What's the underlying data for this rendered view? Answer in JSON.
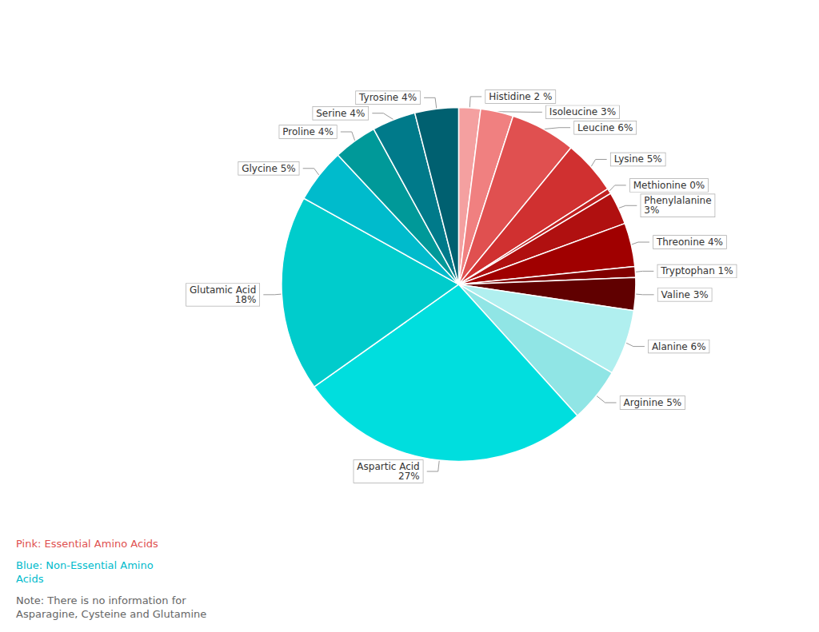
{
  "chart_data": {
    "type": "pie",
    "categories": [
      "Histidine 2 %",
      "Isoleucine 3%",
      "Leucine 6%",
      "Lysine 5%",
      "Methionine 0%",
      "Phenylalanine\n3%",
      "Threonine 4%",
      "Tryptophan 1%",
      "Valine 3%",
      "Alanine 6%",
      "Arginine 5%",
      "Aspartic Acid\n27%",
      "Glutamic Acid\n18%",
      "Glycine 5%",
      "Proline 4%",
      "Serine 4%",
      "Tyrosine 4%"
    ],
    "values": [
      2,
      3,
      6,
      5,
      0.5,
      3,
      4,
      1,
      3,
      6,
      5,
      27,
      18,
      5,
      4,
      4,
      4
    ],
    "colors": [
      "#F4A0A0",
      "#F08080",
      "#E05050",
      "#D03030",
      "#C02020",
      "#B01010",
      "#A00000",
      "#800000",
      "#600000",
      "#B0EFEF",
      "#90E5E5",
      "#00DEDE",
      "#00CCCC",
      "#00BBCC",
      "#009999",
      "#007A8A",
      "#006070"
    ],
    "annotations": [
      {
        "text": "Pink: Essential Amino Acids",
        "color": "#E05050"
      },
      {
        "text": "Blue: Non-Essential Amino\nAcids",
        "color": "#00BBCC"
      },
      {
        "text": "Note: There is no information for\nAsparagine, Cysteine and Glutamine",
        "color": "#666666"
      }
    ],
    "legend": false
  }
}
